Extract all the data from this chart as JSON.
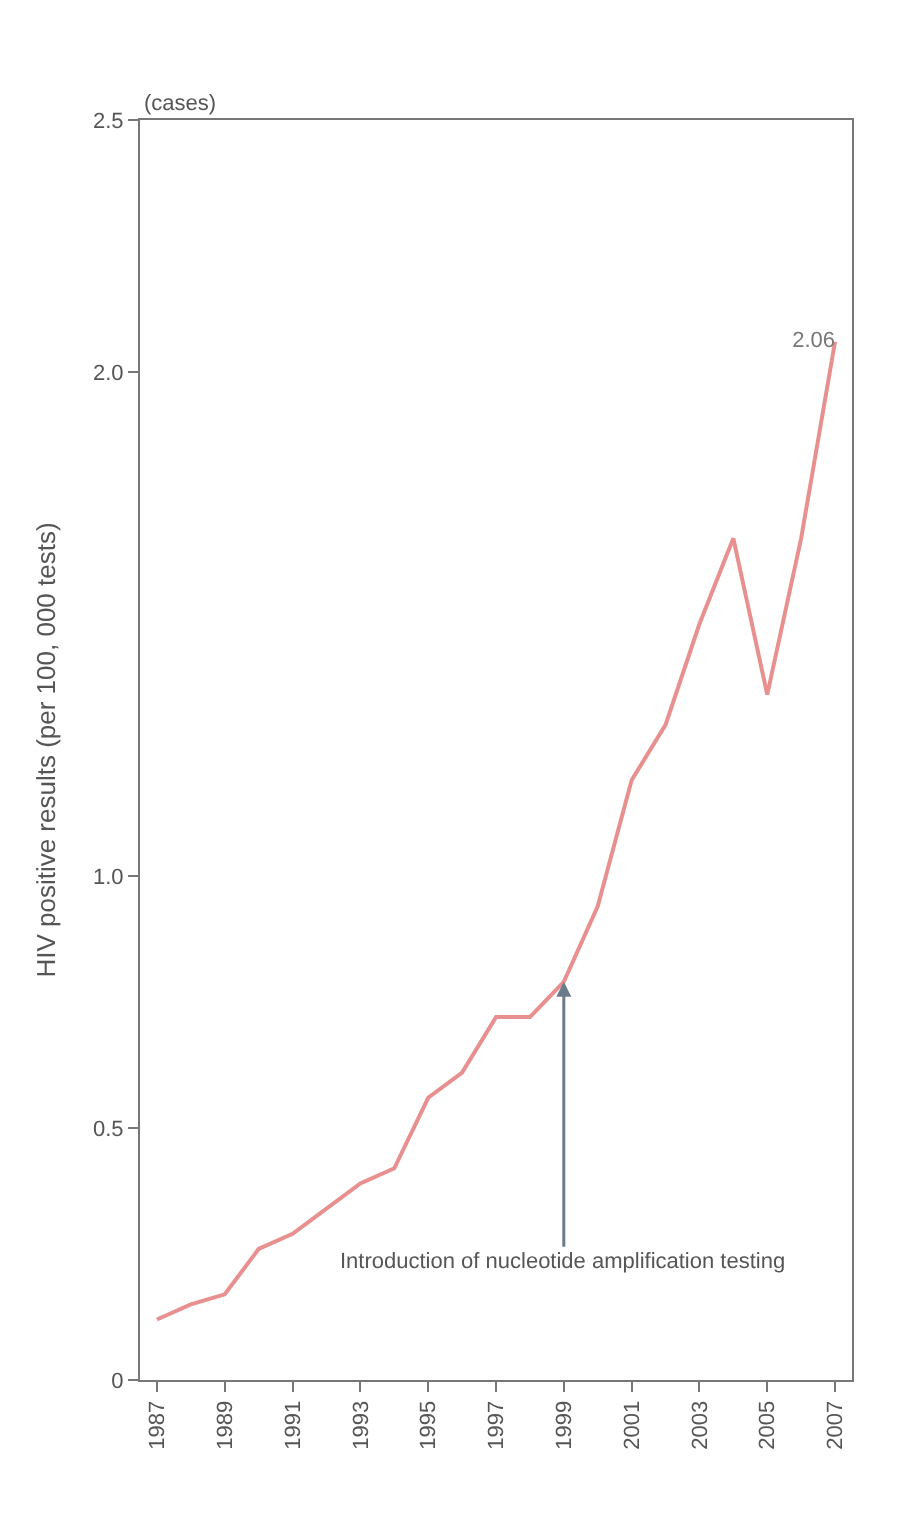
{
  "chart_data": {
    "type": "line",
    "xlabel": null,
    "ylabel": "HIV positive results (per 100, 000 tests)",
    "x": [
      1987,
      1988,
      1989,
      1990,
      1991,
      1992,
      1993,
      1994,
      1995,
      1996,
      1997,
      1998,
      1999,
      2000,
      2001,
      2002,
      2003,
      2004,
      2005,
      2006,
      2007
    ],
    "series": [
      {
        "color": "#e8908f",
        "values": [
          0.12,
          0.15,
          0.17,
          0.26,
          0.29,
          0.34,
          0.39,
          0.42,
          0.56,
          0.61,
          0.72,
          0.72,
          0.79,
          0.94,
          1.19,
          1.3,
          1.5,
          1.67,
          1.36,
          1.67,
          2.06
        ],
        "value_labels": [
          null,
          null,
          null,
          null,
          null,
          null,
          null,
          null,
          null,
          null,
          null,
          null,
          null,
          null,
          null,
          null,
          null,
          null,
          null,
          null,
          "2.06"
        ]
      }
    ],
    "annotations": [
      "(cases)",
      {
        "text": "Introduction of nucleotide amplification testing",
        "x": 1999,
        "y": 0.79
      }
    ],
    "xlim": [
      1986.5,
      2007.5
    ],
    "xticks": [
      1987,
      1989,
      1991,
      1993,
      1995,
      1997,
      1999,
      2001,
      2003,
      2005,
      2007
    ],
    "ylim": [
      0,
      2.5
    ],
    "yticks": [
      0,
      {
        "value": 0.5,
        "label": "0.5"
      },
      {
        "value": 1.0,
        "label": "1.0"
      },
      {
        "value": 2.0,
        "label": "2.0"
      },
      {
        "value": 2.5,
        "label": "2.5"
      }
    ],
    "marker": "none",
    "line_style": "solid"
  }
}
